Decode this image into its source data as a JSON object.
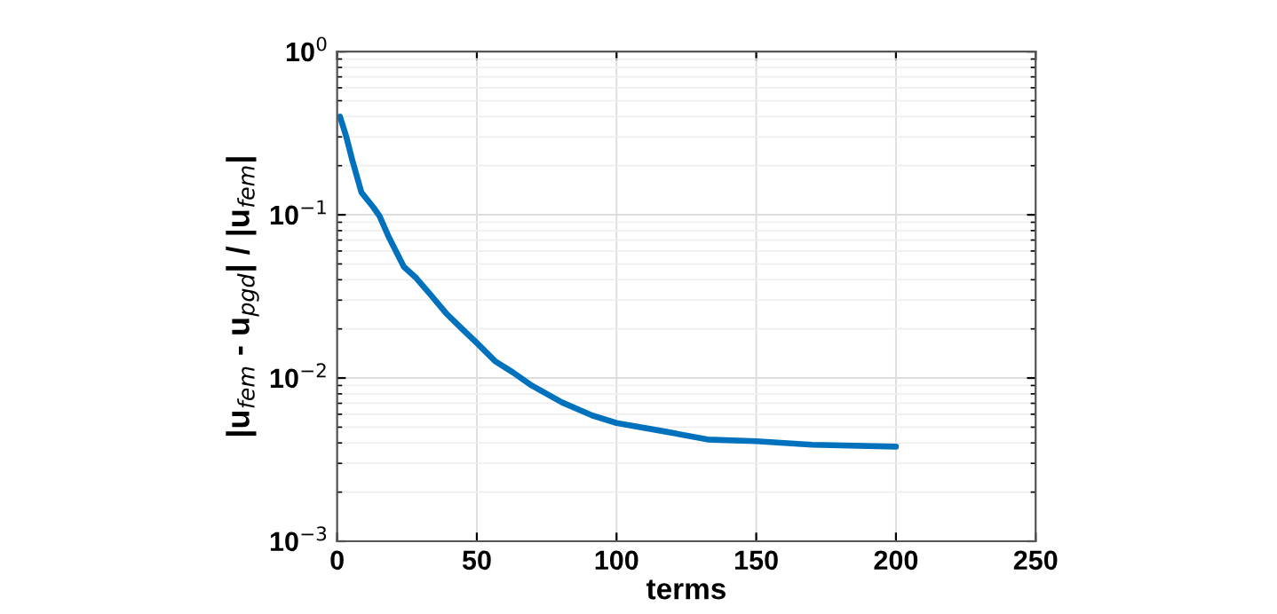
{
  "chart_data": {
    "type": "line",
    "xlabel": "terms",
    "ylabel": "|u$_{fem}$ - u$_{pgd}$| / |u$_{fem}$|",
    "x": [
      1,
      3.3,
      5.4,
      8.7,
      13,
      15.2,
      18.5,
      23.9,
      28.3,
      33.7,
      39.1,
      44.6,
      50,
      56.5,
      63,
      69.6,
      80.4,
      91.3,
      100,
      117.4,
      132.6,
      150,
      170,
      200
    ],
    "series": [
      {
        "color": "#0072bd",
        "values": [
          0.4,
          0.3,
          0.217,
          0.137,
          0.111,
          0.098,
          0.073,
          0.048,
          0.041,
          0.032,
          0.0248,
          0.0201,
          0.0164,
          0.0127,
          0.0108,
          0.009,
          0.0071,
          0.0059,
          0.0053,
          0.0047,
          0.0042,
          0.0041,
          0.0039,
          0.0038
        ]
      }
    ],
    "log": "y",
    "xlim": [
      0,
      250
    ],
    "xticks": [
      0,
      50,
      100,
      150,
      200,
      250
    ],
    "ylim": [
      0.001,
      1
    ],
    "yticks": [
      {
        "value": 0.001,
        "label": "10$^{−3}$"
      },
      {
        "value": 0.01,
        "label": "10$^{−2}$"
      },
      {
        "value": 0.1,
        "label": "10$^{−1}$"
      },
      {
        "value": 1,
        "label": "10$^{0}$"
      }
    ],
    "grid": true,
    "marker": "none",
    "line_style": "solid"
  }
}
